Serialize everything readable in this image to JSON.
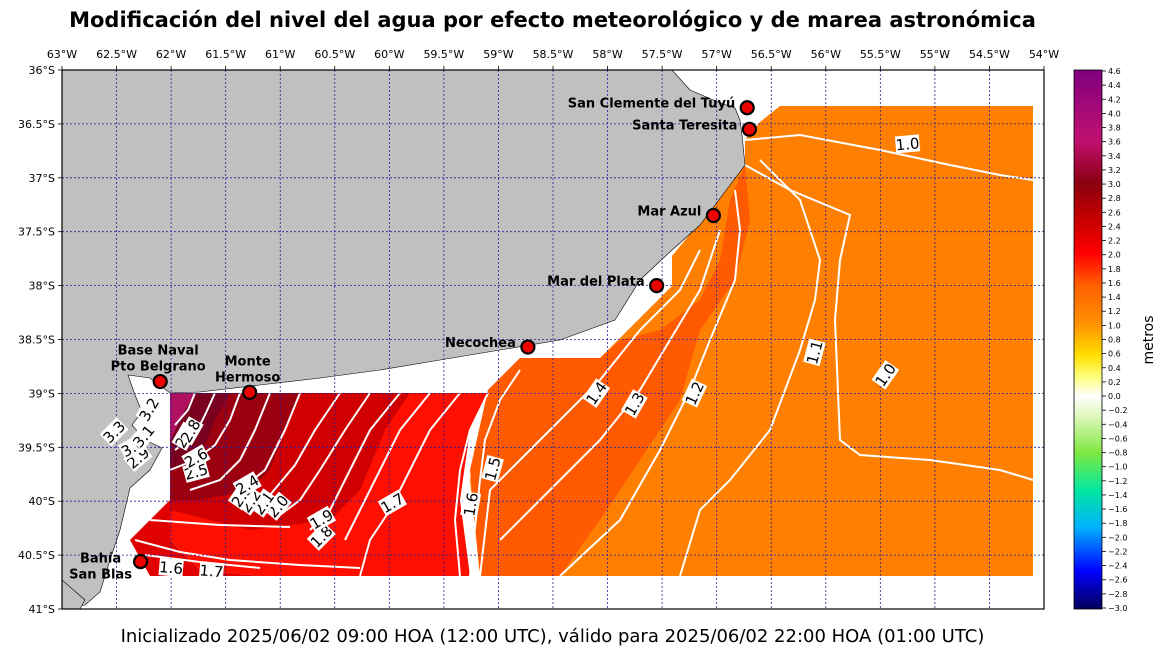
{
  "title": "Modificación del nivel del agua por efecto meteorológico y de marea astronómica",
  "footer": "Inicializado 2025/06/02 09:00 HOA (12:00 UTC), válido para 2025/06/02 22:00 HOA (01:00 UTC)",
  "colors": {
    "land": "#c0c0c0",
    "grid": "#2020a0",
    "station_fill": "#ee0000",
    "contour": "#ffffff"
  },
  "map": {
    "lon_range": [
      -63,
      -54
    ],
    "lat_range": [
      -41,
      -36
    ],
    "lon_ticks": [
      {
        "value": -63,
        "label": "63°W"
      },
      {
        "value": -62.5,
        "label": "62.5°W"
      },
      {
        "value": -62,
        "label": "62°W"
      },
      {
        "value": -61.5,
        "label": "61.5°W"
      },
      {
        "value": -61,
        "label": "61°W"
      },
      {
        "value": -60.5,
        "label": "60.5°W"
      },
      {
        "value": -60,
        "label": "60°W"
      },
      {
        "value": -59.5,
        "label": "59.5°W"
      },
      {
        "value": -59,
        "label": "59°W"
      },
      {
        "value": -58.5,
        "label": "58.5°W"
      },
      {
        "value": -58,
        "label": "58°W"
      },
      {
        "value": -57.5,
        "label": "57.5°W"
      },
      {
        "value": -57,
        "label": "57°W"
      },
      {
        "value": -56.5,
        "label": "56.5°W"
      },
      {
        "value": -56,
        "label": "56°W"
      },
      {
        "value": -55.5,
        "label": "55.5°W"
      },
      {
        "value": -55,
        "label": "55°W"
      },
      {
        "value": -54.5,
        "label": "54.5°W"
      },
      {
        "value": -54,
        "label": "54°W"
      }
    ],
    "lat_ticks": [
      {
        "value": -36,
        "label": "36°S"
      },
      {
        "value": -36.5,
        "label": "36.5°S"
      },
      {
        "value": -37,
        "label": "37°S"
      },
      {
        "value": -37.5,
        "label": "37.5°S"
      },
      {
        "value": -38,
        "label": "38°S"
      },
      {
        "value": -38.5,
        "label": "38.5°S"
      },
      {
        "value": -39,
        "label": "39°S"
      },
      {
        "value": -39.5,
        "label": "39.5°S"
      },
      {
        "value": -40,
        "label": "40°S"
      },
      {
        "value": -40.5,
        "label": "40.5°S"
      },
      {
        "value": -41,
        "label": "41°S"
      }
    ],
    "stations": [
      {
        "name": "San Clemente del Tuyú",
        "lon": -56.72,
        "lat": -36.35,
        "anchor": "end"
      },
      {
        "name": "Santa Teresita",
        "lon": -56.7,
        "lat": -36.55,
        "anchor": "end"
      },
      {
        "name": "Mar Azul",
        "lon": -57.03,
        "lat": -37.35,
        "anchor": "end"
      },
      {
        "name": "Mar del Plata",
        "lon": -57.55,
        "lat": -38.0,
        "anchor": "end"
      },
      {
        "name": "Necochea",
        "lon": -58.73,
        "lat": -38.57,
        "anchor": "end"
      },
      {
        "name": "Base Naval\nPto Belgrano",
        "lon": -62.1,
        "lat": -38.89,
        "anchor": "middle"
      },
      {
        "name": "Monte\nHermoso",
        "lon": -61.28,
        "lat": -38.99,
        "anchor": "middle"
      },
      {
        "name": "Bahía\nSan Blas",
        "lon": -62.28,
        "lat": -40.56,
        "anchor": "middle"
      }
    ],
    "contour_labels": [
      {
        "text": "1.0",
        "lon": -55.25,
        "lat": -36.69,
        "rot": -5
      },
      {
        "text": "1.0",
        "lon": -55.45,
        "lat": -38.83,
        "rot": -55
      },
      {
        "text": "1.1",
        "lon": -56.1,
        "lat": -38.62,
        "rot": -75
      },
      {
        "text": "1.2",
        "lon": -57.2,
        "lat": -39.0,
        "rot": -65
      },
      {
        "text": "1.3",
        "lon": -57.75,
        "lat": -39.1,
        "rot": -60
      },
      {
        "text": "1.4",
        "lon": -58.1,
        "lat": -39.0,
        "rot": -55
      },
      {
        "text": "1.5",
        "lon": -59.05,
        "lat": -39.7,
        "rot": -75
      },
      {
        "text": "1.6",
        "lon": -59.25,
        "lat": -40.03,
        "rot": -80
      },
      {
        "text": "1.7",
        "lon": -59.97,
        "lat": -40.02,
        "rot": -30
      },
      {
        "text": "1.8",
        "lon": -60.62,
        "lat": -40.33,
        "rot": -45
      },
      {
        "text": "1.9",
        "lon": -60.62,
        "lat": -40.17,
        "rot": -30
      },
      {
        "text": "2.0",
        "lon": -61.02,
        "lat": -40.05,
        "rot": -50
      },
      {
        "text": "2.1",
        "lon": -61.15,
        "lat": -40.02,
        "rot": -55
      },
      {
        "text": "2.2",
        "lon": -61.27,
        "lat": -40.0,
        "rot": -55
      },
      {
        "text": "2.3",
        "lon": -61.35,
        "lat": -39.95,
        "rot": -55
      },
      {
        "text": "2.4",
        "lon": -61.3,
        "lat": -39.85,
        "rot": -30
      },
      {
        "text": "2.5",
        "lon": -61.77,
        "lat": -39.73,
        "rot": -15
      },
      {
        "text": "2.6",
        "lon": -61.77,
        "lat": -39.6,
        "rot": -30
      },
      {
        "text": "2.7",
        "lon": -61.87,
        "lat": -39.4,
        "rot": -60
      },
      {
        "text": "2.8",
        "lon": -61.82,
        "lat": -39.35,
        "rot": -60
      },
      {
        "text": "2.9",
        "lon": -62.3,
        "lat": -39.6,
        "rot": -40
      },
      {
        "text": "3.0",
        "lon": -62.35,
        "lat": -39.5,
        "rot": -30
      },
      {
        "text": "3.1",
        "lon": -62.25,
        "lat": -39.4,
        "rot": -50
      },
      {
        "text": "3.2",
        "lon": -62.2,
        "lat": -39.15,
        "rot": -60
      },
      {
        "text": "3.3",
        "lon": -62.52,
        "lat": -39.36,
        "rot": -45
      },
      {
        "text": "1.6",
        "lon": -62.0,
        "lat": -40.62,
        "rot": 5
      },
      {
        "text": "1.7",
        "lon": -61.63,
        "lat": -40.65,
        "rot": 5
      }
    ]
  },
  "colorbar": {
    "label": "metros",
    "range": [
      -3.0,
      4.6
    ],
    "ticks": [
      "4.6",
      "4.4",
      "4.2",
      "4.0",
      "3.8",
      "3.6",
      "3.4",
      "3.2",
      "3.0",
      "2.8",
      "2.6",
      "2.4",
      "2.2",
      "2.0",
      "1.8",
      "1.6",
      "1.4",
      "1.2",
      "1.0",
      "0.8",
      "0.6",
      "0.4",
      "0.2",
      "0.0",
      "−0.2",
      "−0.4",
      "−0.6",
      "−0.8",
      "−1.0",
      "−1.2",
      "−1.4",
      "−1.6",
      "−1.8",
      "−2.0",
      "−2.2",
      "−2.4",
      "−2.6",
      "−2.8",
      "−3.0"
    ]
  }
}
